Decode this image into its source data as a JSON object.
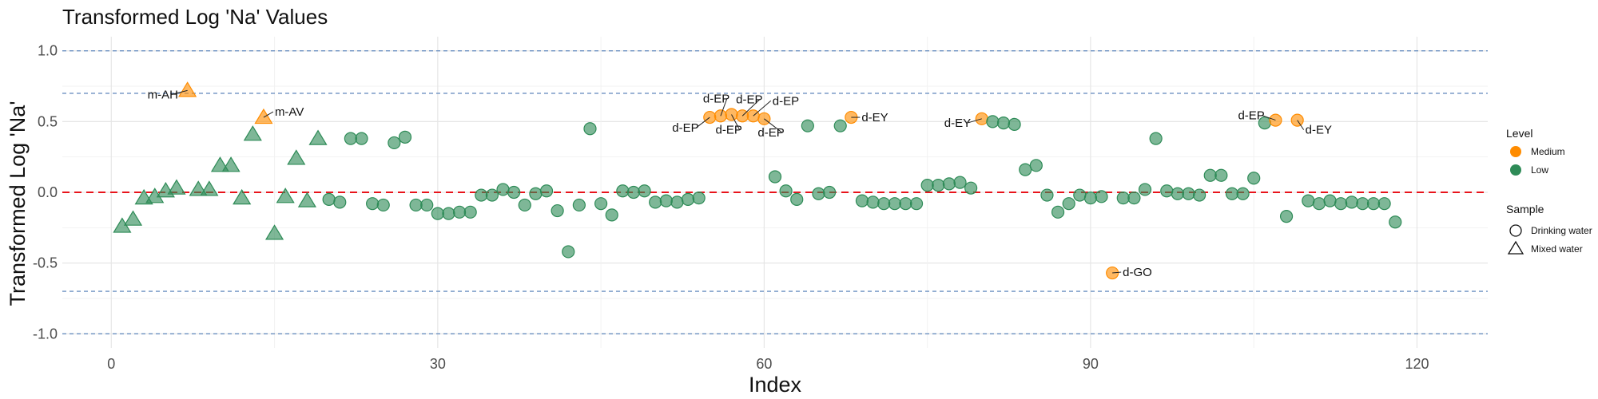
{
  "chart_data": {
    "type": "scatter",
    "title": "Transformed Log 'Na' Values",
    "xlabel": "Index",
    "ylabel": "Transformed Log 'Na'",
    "xlim": [
      -4.5,
      126.5
    ],
    "ylim": [
      -1.1,
      1.1
    ],
    "x_ticks": [
      0,
      30,
      60,
      90,
      120
    ],
    "y_ticks": [
      -1.0,
      -0.5,
      0.0,
      0.5,
      1.0
    ],
    "y_tick_labels": [
      "-1.0",
      "-0.5",
      "0.0",
      "0.5",
      "1.0"
    ],
    "reference_lines": [
      {
        "y": 0.0,
        "style": "dashed",
        "color": "#e8141b"
      },
      {
        "y": 1.0,
        "style": "dashed",
        "color": "#6a8fc0"
      },
      {
        "y": -1.0,
        "style": "dashed",
        "color": "#6a8fc0"
      },
      {
        "y": 0.7,
        "style": "dashed",
        "color": "#6a8fc0"
      },
      {
        "y": -0.7,
        "style": "dashed",
        "color": "#6a8fc0"
      }
    ],
    "grid": true,
    "legend": {
      "placement": "right",
      "level_title": "Level",
      "levels": [
        {
          "name": "Medium",
          "color": "#ff8c00"
        },
        {
          "name": "Low",
          "color": "#2e8b57"
        }
      ],
      "sample_title": "Sample",
      "samples": [
        {
          "name": "Drinking water",
          "shape": "circle"
        },
        {
          "name": "Mixed water",
          "shape": "triangle"
        }
      ]
    },
    "points": [
      {
        "x": 1,
        "y": -0.24,
        "level": "Low",
        "sample": "Mixed water"
      },
      {
        "x": 2,
        "y": -0.19,
        "level": "Low",
        "sample": "Mixed water"
      },
      {
        "x": 3,
        "y": -0.04,
        "level": "Low",
        "sample": "Mixed water"
      },
      {
        "x": 4,
        "y": -0.03,
        "level": "Low",
        "sample": "Mixed water"
      },
      {
        "x": 5,
        "y": 0.01,
        "level": "Low",
        "sample": "Mixed water"
      },
      {
        "x": 6,
        "y": 0.03,
        "level": "Low",
        "sample": "Mixed water"
      },
      {
        "x": 7,
        "y": 0.72,
        "level": "Medium",
        "sample": "Mixed water",
        "label": "m-AH"
      },
      {
        "x": 8,
        "y": 0.02,
        "level": "Low",
        "sample": "Mixed water"
      },
      {
        "x": 9,
        "y": 0.02,
        "level": "Low",
        "sample": "Mixed water"
      },
      {
        "x": 10,
        "y": 0.19,
        "level": "Low",
        "sample": "Mixed water"
      },
      {
        "x": 11,
        "y": 0.19,
        "level": "Low",
        "sample": "Mixed water"
      },
      {
        "x": 12,
        "y": -0.04,
        "level": "Low",
        "sample": "Mixed water"
      },
      {
        "x": 13,
        "y": 0.41,
        "level": "Low",
        "sample": "Mixed water"
      },
      {
        "x": 14,
        "y": 0.53,
        "level": "Medium",
        "sample": "Mixed water",
        "label": "m-AV"
      },
      {
        "x": 15,
        "y": -0.29,
        "level": "Low",
        "sample": "Mixed water"
      },
      {
        "x": 16,
        "y": -0.03,
        "level": "Low",
        "sample": "Mixed water"
      },
      {
        "x": 17,
        "y": 0.24,
        "level": "Low",
        "sample": "Mixed water"
      },
      {
        "x": 18,
        "y": -0.06,
        "level": "Low",
        "sample": "Mixed water"
      },
      {
        "x": 19,
        "y": 0.38,
        "level": "Low",
        "sample": "Mixed water"
      },
      {
        "x": 20,
        "y": -0.05,
        "level": "Low",
        "sample": "Drinking water"
      },
      {
        "x": 21,
        "y": -0.07,
        "level": "Low",
        "sample": "Drinking water"
      },
      {
        "x": 22,
        "y": 0.38,
        "level": "Low",
        "sample": "Drinking water"
      },
      {
        "x": 23,
        "y": 0.38,
        "level": "Low",
        "sample": "Drinking water"
      },
      {
        "x": 24,
        "y": -0.08,
        "level": "Low",
        "sample": "Drinking water"
      },
      {
        "x": 25,
        "y": -0.09,
        "level": "Low",
        "sample": "Drinking water"
      },
      {
        "x": 26,
        "y": 0.35,
        "level": "Low",
        "sample": "Drinking water"
      },
      {
        "x": 27,
        "y": 0.39,
        "level": "Low",
        "sample": "Drinking water"
      },
      {
        "x": 28,
        "y": -0.09,
        "level": "Low",
        "sample": "Drinking water"
      },
      {
        "x": 29,
        "y": -0.09,
        "level": "Low",
        "sample": "Drinking water"
      },
      {
        "x": 30,
        "y": -0.15,
        "level": "Low",
        "sample": "Drinking water"
      },
      {
        "x": 31,
        "y": -0.15,
        "level": "Low",
        "sample": "Drinking water"
      },
      {
        "x": 32,
        "y": -0.14,
        "level": "Low",
        "sample": "Drinking water"
      },
      {
        "x": 33,
        "y": -0.14,
        "level": "Low",
        "sample": "Drinking water"
      },
      {
        "x": 34,
        "y": -0.02,
        "level": "Low",
        "sample": "Drinking water"
      },
      {
        "x": 35,
        "y": -0.02,
        "level": "Low",
        "sample": "Drinking water"
      },
      {
        "x": 36,
        "y": 0.02,
        "level": "Low",
        "sample": "Drinking water"
      },
      {
        "x": 37,
        "y": 0.0,
        "level": "Low",
        "sample": "Drinking water"
      },
      {
        "x": 38,
        "y": -0.09,
        "level": "Low",
        "sample": "Drinking water"
      },
      {
        "x": 39,
        "y": -0.01,
        "level": "Low",
        "sample": "Drinking water"
      },
      {
        "x": 40,
        "y": 0.01,
        "level": "Low",
        "sample": "Drinking water"
      },
      {
        "x": 41,
        "y": -0.13,
        "level": "Low",
        "sample": "Drinking water"
      },
      {
        "x": 42,
        "y": -0.42,
        "level": "Low",
        "sample": "Drinking water"
      },
      {
        "x": 43,
        "y": -0.09,
        "level": "Low",
        "sample": "Drinking water"
      },
      {
        "x": 44,
        "y": 0.45,
        "level": "Low",
        "sample": "Drinking water"
      },
      {
        "x": 45,
        "y": -0.08,
        "level": "Low",
        "sample": "Drinking water"
      },
      {
        "x": 46,
        "y": -0.16,
        "level": "Low",
        "sample": "Drinking water"
      },
      {
        "x": 47,
        "y": 0.01,
        "level": "Low",
        "sample": "Drinking water"
      },
      {
        "x": 48,
        "y": 0.0,
        "level": "Low",
        "sample": "Drinking water"
      },
      {
        "x": 49,
        "y": 0.01,
        "level": "Low",
        "sample": "Drinking water"
      },
      {
        "x": 50,
        "y": -0.07,
        "level": "Low",
        "sample": "Drinking water"
      },
      {
        "x": 51,
        "y": -0.06,
        "level": "Low",
        "sample": "Drinking water"
      },
      {
        "x": 52,
        "y": -0.07,
        "level": "Low",
        "sample": "Drinking water"
      },
      {
        "x": 53,
        "y": -0.05,
        "level": "Low",
        "sample": "Drinking water"
      },
      {
        "x": 54,
        "y": -0.04,
        "level": "Low",
        "sample": "Drinking water"
      },
      {
        "x": 55,
        "y": 0.53,
        "level": "Medium",
        "sample": "Drinking water",
        "label": "d-EP"
      },
      {
        "x": 56,
        "y": 0.54,
        "level": "Medium",
        "sample": "Drinking water",
        "label": "d-EP"
      },
      {
        "x": 57,
        "y": 0.55,
        "level": "Medium",
        "sample": "Drinking water",
        "label": "d-EP"
      },
      {
        "x": 58,
        "y": 0.54,
        "level": "Medium",
        "sample": "Drinking water",
        "label": "d-EP"
      },
      {
        "x": 59,
        "y": 0.54,
        "level": "Medium",
        "sample": "Drinking water",
        "label": "d-EP"
      },
      {
        "x": 60,
        "y": 0.52,
        "level": "Medium",
        "sample": "Drinking water",
        "label": "d-EP"
      },
      {
        "x": 61,
        "y": 0.11,
        "level": "Low",
        "sample": "Drinking water"
      },
      {
        "x": 62,
        "y": 0.01,
        "level": "Low",
        "sample": "Drinking water"
      },
      {
        "x": 63,
        "y": -0.05,
        "level": "Low",
        "sample": "Drinking water"
      },
      {
        "x": 64,
        "y": 0.47,
        "level": "Low",
        "sample": "Drinking water"
      },
      {
        "x": 65,
        "y": -0.01,
        "level": "Low",
        "sample": "Drinking water"
      },
      {
        "x": 66,
        "y": 0.0,
        "level": "Low",
        "sample": "Drinking water"
      },
      {
        "x": 67,
        "y": 0.47,
        "level": "Low",
        "sample": "Drinking water"
      },
      {
        "x": 68,
        "y": 0.53,
        "level": "Medium",
        "sample": "Drinking water",
        "label": "d-EY"
      },
      {
        "x": 69,
        "y": -0.06,
        "level": "Low",
        "sample": "Drinking water"
      },
      {
        "x": 70,
        "y": -0.07,
        "level": "Low",
        "sample": "Drinking water"
      },
      {
        "x": 71,
        "y": -0.08,
        "level": "Low",
        "sample": "Drinking water"
      },
      {
        "x": 72,
        "y": -0.08,
        "level": "Low",
        "sample": "Drinking water"
      },
      {
        "x": 73,
        "y": -0.08,
        "level": "Low",
        "sample": "Drinking water"
      },
      {
        "x": 74,
        "y": -0.08,
        "level": "Low",
        "sample": "Drinking water"
      },
      {
        "x": 75,
        "y": 0.05,
        "level": "Low",
        "sample": "Drinking water"
      },
      {
        "x": 76,
        "y": 0.05,
        "level": "Low",
        "sample": "Drinking water"
      },
      {
        "x": 77,
        "y": 0.06,
        "level": "Low",
        "sample": "Drinking water"
      },
      {
        "x": 78,
        "y": 0.07,
        "level": "Low",
        "sample": "Drinking water"
      },
      {
        "x": 79,
        "y": 0.03,
        "level": "Low",
        "sample": "Drinking water"
      },
      {
        "x": 80,
        "y": 0.52,
        "level": "Medium",
        "sample": "Drinking water",
        "label": "d-EY"
      },
      {
        "x": 81,
        "y": 0.5,
        "level": "Low",
        "sample": "Drinking water"
      },
      {
        "x": 82,
        "y": 0.49,
        "level": "Low",
        "sample": "Drinking water"
      },
      {
        "x": 83,
        "y": 0.48,
        "level": "Low",
        "sample": "Drinking water"
      },
      {
        "x": 84,
        "y": 0.16,
        "level": "Low",
        "sample": "Drinking water"
      },
      {
        "x": 85,
        "y": 0.19,
        "level": "Low",
        "sample": "Drinking water"
      },
      {
        "x": 86,
        "y": -0.02,
        "level": "Low",
        "sample": "Drinking water"
      },
      {
        "x": 87,
        "y": -0.14,
        "level": "Low",
        "sample": "Drinking water"
      },
      {
        "x": 88,
        "y": -0.08,
        "level": "Low",
        "sample": "Drinking water"
      },
      {
        "x": 89,
        "y": -0.02,
        "level": "Low",
        "sample": "Drinking water"
      },
      {
        "x": 90,
        "y": -0.04,
        "level": "Low",
        "sample": "Drinking water"
      },
      {
        "x": 91,
        "y": -0.03,
        "level": "Low",
        "sample": "Drinking water"
      },
      {
        "x": 92,
        "y": -0.57,
        "level": "Medium",
        "sample": "Drinking water",
        "label": "d-GO"
      },
      {
        "x": 93,
        "y": -0.04,
        "level": "Low",
        "sample": "Drinking water"
      },
      {
        "x": 94,
        "y": -0.04,
        "level": "Low",
        "sample": "Drinking water"
      },
      {
        "x": 95,
        "y": 0.02,
        "level": "Low",
        "sample": "Drinking water"
      },
      {
        "x": 96,
        "y": 0.38,
        "level": "Low",
        "sample": "Drinking water"
      },
      {
        "x": 97,
        "y": 0.01,
        "level": "Low",
        "sample": "Drinking water"
      },
      {
        "x": 98,
        "y": -0.01,
        "level": "Low",
        "sample": "Drinking water"
      },
      {
        "x": 99,
        "y": -0.01,
        "level": "Low",
        "sample": "Drinking water"
      },
      {
        "x": 100,
        "y": -0.02,
        "level": "Low",
        "sample": "Drinking water"
      },
      {
        "x": 101,
        "y": 0.12,
        "level": "Low",
        "sample": "Drinking water"
      },
      {
        "x": 102,
        "y": 0.12,
        "level": "Low",
        "sample": "Drinking water"
      },
      {
        "x": 103,
        "y": -0.01,
        "level": "Low",
        "sample": "Drinking water"
      },
      {
        "x": 104,
        "y": -0.01,
        "level": "Low",
        "sample": "Drinking water"
      },
      {
        "x": 105,
        "y": 0.1,
        "level": "Low",
        "sample": "Drinking water"
      },
      {
        "x": 106,
        "y": 0.49,
        "level": "Low",
        "sample": "Drinking water"
      },
      {
        "x": 107,
        "y": 0.51,
        "level": "Medium",
        "sample": "Drinking water",
        "label": "d-EP"
      },
      {
        "x": 108,
        "y": -0.17,
        "level": "Low",
        "sample": "Drinking water"
      },
      {
        "x": 109,
        "y": 0.51,
        "level": "Medium",
        "sample": "Drinking water",
        "label": "d-EY"
      },
      {
        "x": 110,
        "y": -0.06,
        "level": "Low",
        "sample": "Drinking water"
      },
      {
        "x": 111,
        "y": -0.08,
        "level": "Low",
        "sample": "Drinking water"
      },
      {
        "x": 112,
        "y": -0.06,
        "level": "Low",
        "sample": "Drinking water"
      },
      {
        "x": 113,
        "y": -0.08,
        "level": "Low",
        "sample": "Drinking water"
      },
      {
        "x": 114,
        "y": -0.07,
        "level": "Low",
        "sample": "Drinking water"
      },
      {
        "x": 115,
        "y": -0.08,
        "level": "Low",
        "sample": "Drinking water"
      },
      {
        "x": 116,
        "y": -0.08,
        "level": "Low",
        "sample": "Drinking water"
      },
      {
        "x": 117,
        "y": -0.08,
        "level": "Low",
        "sample": "Drinking water"
      },
      {
        "x": 118,
        "y": -0.21,
        "level": "Low",
        "sample": "Drinking water"
      }
    ]
  }
}
